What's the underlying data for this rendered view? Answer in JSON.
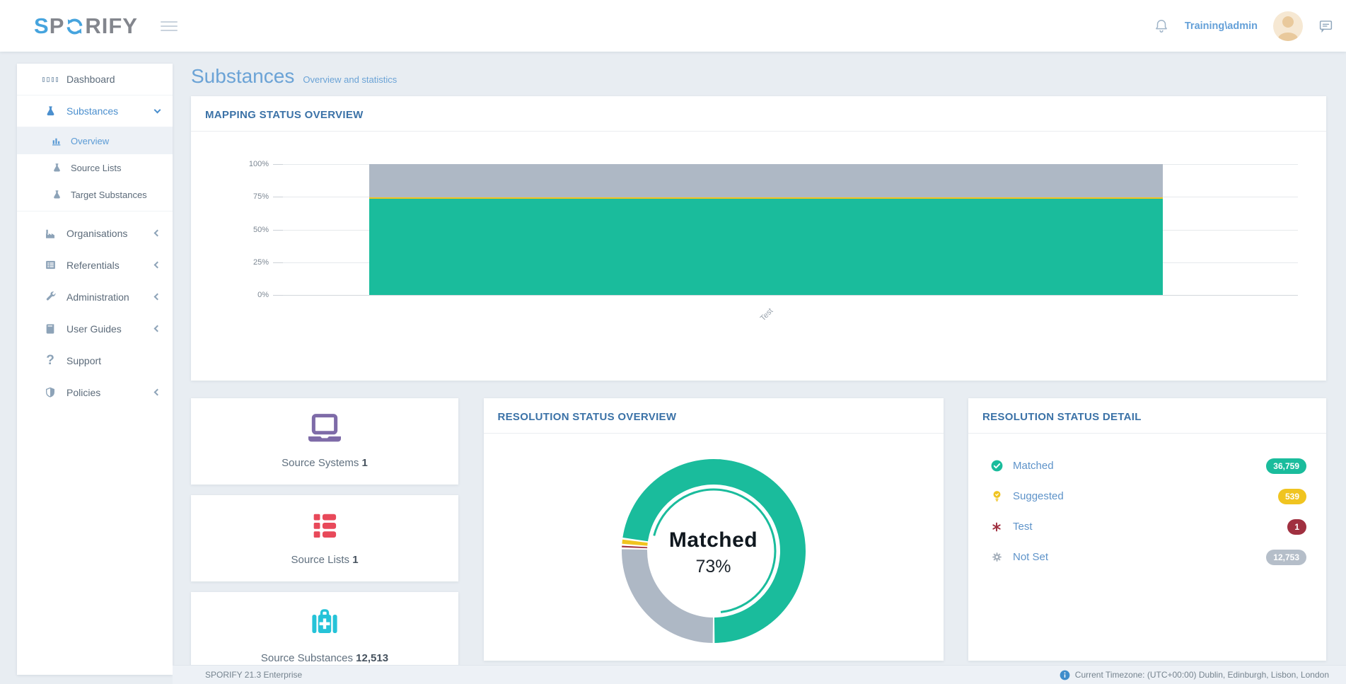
{
  "header": {
    "logo_prefix": "SP",
    "logo_suffix": "RIFY",
    "user_name": "Training\\admin"
  },
  "sidebar": {
    "items": [
      {
        "label": "Dashboard"
      },
      {
        "label": "Substances",
        "expanded": true,
        "children": [
          {
            "label": "Overview",
            "active": true
          },
          {
            "label": "Source Lists"
          },
          {
            "label": "Target Substances"
          }
        ]
      },
      {
        "label": "Organisations"
      },
      {
        "label": "Referentials"
      },
      {
        "label": "Administration"
      },
      {
        "label": "User Guides"
      },
      {
        "label": "Support"
      },
      {
        "label": "Policies"
      }
    ]
  },
  "page": {
    "title": "Substances",
    "subtitle": "Overview and statistics"
  },
  "cards": {
    "mapping_title": "MAPPING STATUS OVERVIEW",
    "resolution_overview_title": "RESOLUTION STATUS OVERVIEW",
    "resolution_detail_title": "RESOLUTION STATUS DETAIL"
  },
  "stats": [
    {
      "label": "Source Systems",
      "value": "1",
      "icon": "laptop-icon",
      "color": "#7e6ba8"
    },
    {
      "label": "Source Lists",
      "value": "1",
      "icon": "list-icon",
      "color": "#e8495a"
    },
    {
      "label": "Source Substances",
      "value": "12,513",
      "icon": "first-aid-kit-icon",
      "color": "#25c3d8"
    }
  ],
  "resolution_detail": [
    {
      "label": "Matched",
      "value": "36,759",
      "color": "#1abc9c",
      "icon": "check-circle-icon"
    },
    {
      "label": "Suggested",
      "value": "539",
      "color": "#f0c420",
      "icon": "bulb-icon"
    },
    {
      "label": "Test",
      "value": "1",
      "color": "#a03040",
      "icon": "asterisk-icon"
    },
    {
      "label": "Not Set",
      "value": "12,753",
      "color": "#b5bec9",
      "icon": "gear-icon"
    }
  ],
  "chart_data": [
    {
      "type": "bar",
      "stacked": true,
      "title": "MAPPING STATUS OVERVIEW",
      "categories": [
        "Test"
      ],
      "series": [
        {
          "name": "Matched",
          "values": [
            36759
          ],
          "color": "#1abc9c"
        },
        {
          "name": "Suggested",
          "values": [
            539
          ],
          "color": "#f0c420"
        },
        {
          "name": "Test",
          "values": [
            1
          ],
          "color": "#a03040"
        },
        {
          "name": "Not Set",
          "values": [
            12753
          ],
          "color": "#aeb8c5"
        }
      ],
      "y_ticks": [
        "100%",
        "75%",
        "50%",
        "25%",
        "0%"
      ],
      "ylim": [
        0,
        100
      ],
      "ylabel": "",
      "xlabel": "",
      "grid": true,
      "legend": "none",
      "note": "single 100%-stacked column, x category label rotated 45deg"
    },
    {
      "type": "donut",
      "title": "RESOLUTION STATUS OVERVIEW",
      "segments": [
        {
          "label": "Matched",
          "value": 36759,
          "color": "#1abc9c",
          "selected": true
        },
        {
          "label": "Suggested",
          "value": 539,
          "color": "#f0c420"
        },
        {
          "label": "Test",
          "value": 1,
          "color": "#a03040"
        },
        {
          "label": "Not Set",
          "value": 12753,
          "color": "#aeb8c5"
        }
      ],
      "center_label": "Matched",
      "center_value": "73%",
      "start": "bottom",
      "direction": "counterclockwise",
      "legend": "none"
    }
  ],
  "footer": {
    "left": "SPORIFY 21.3 Enterprise",
    "right": "Current Timezone: (UTC+00:00) Dublin, Edinburgh, Lisbon, London"
  }
}
